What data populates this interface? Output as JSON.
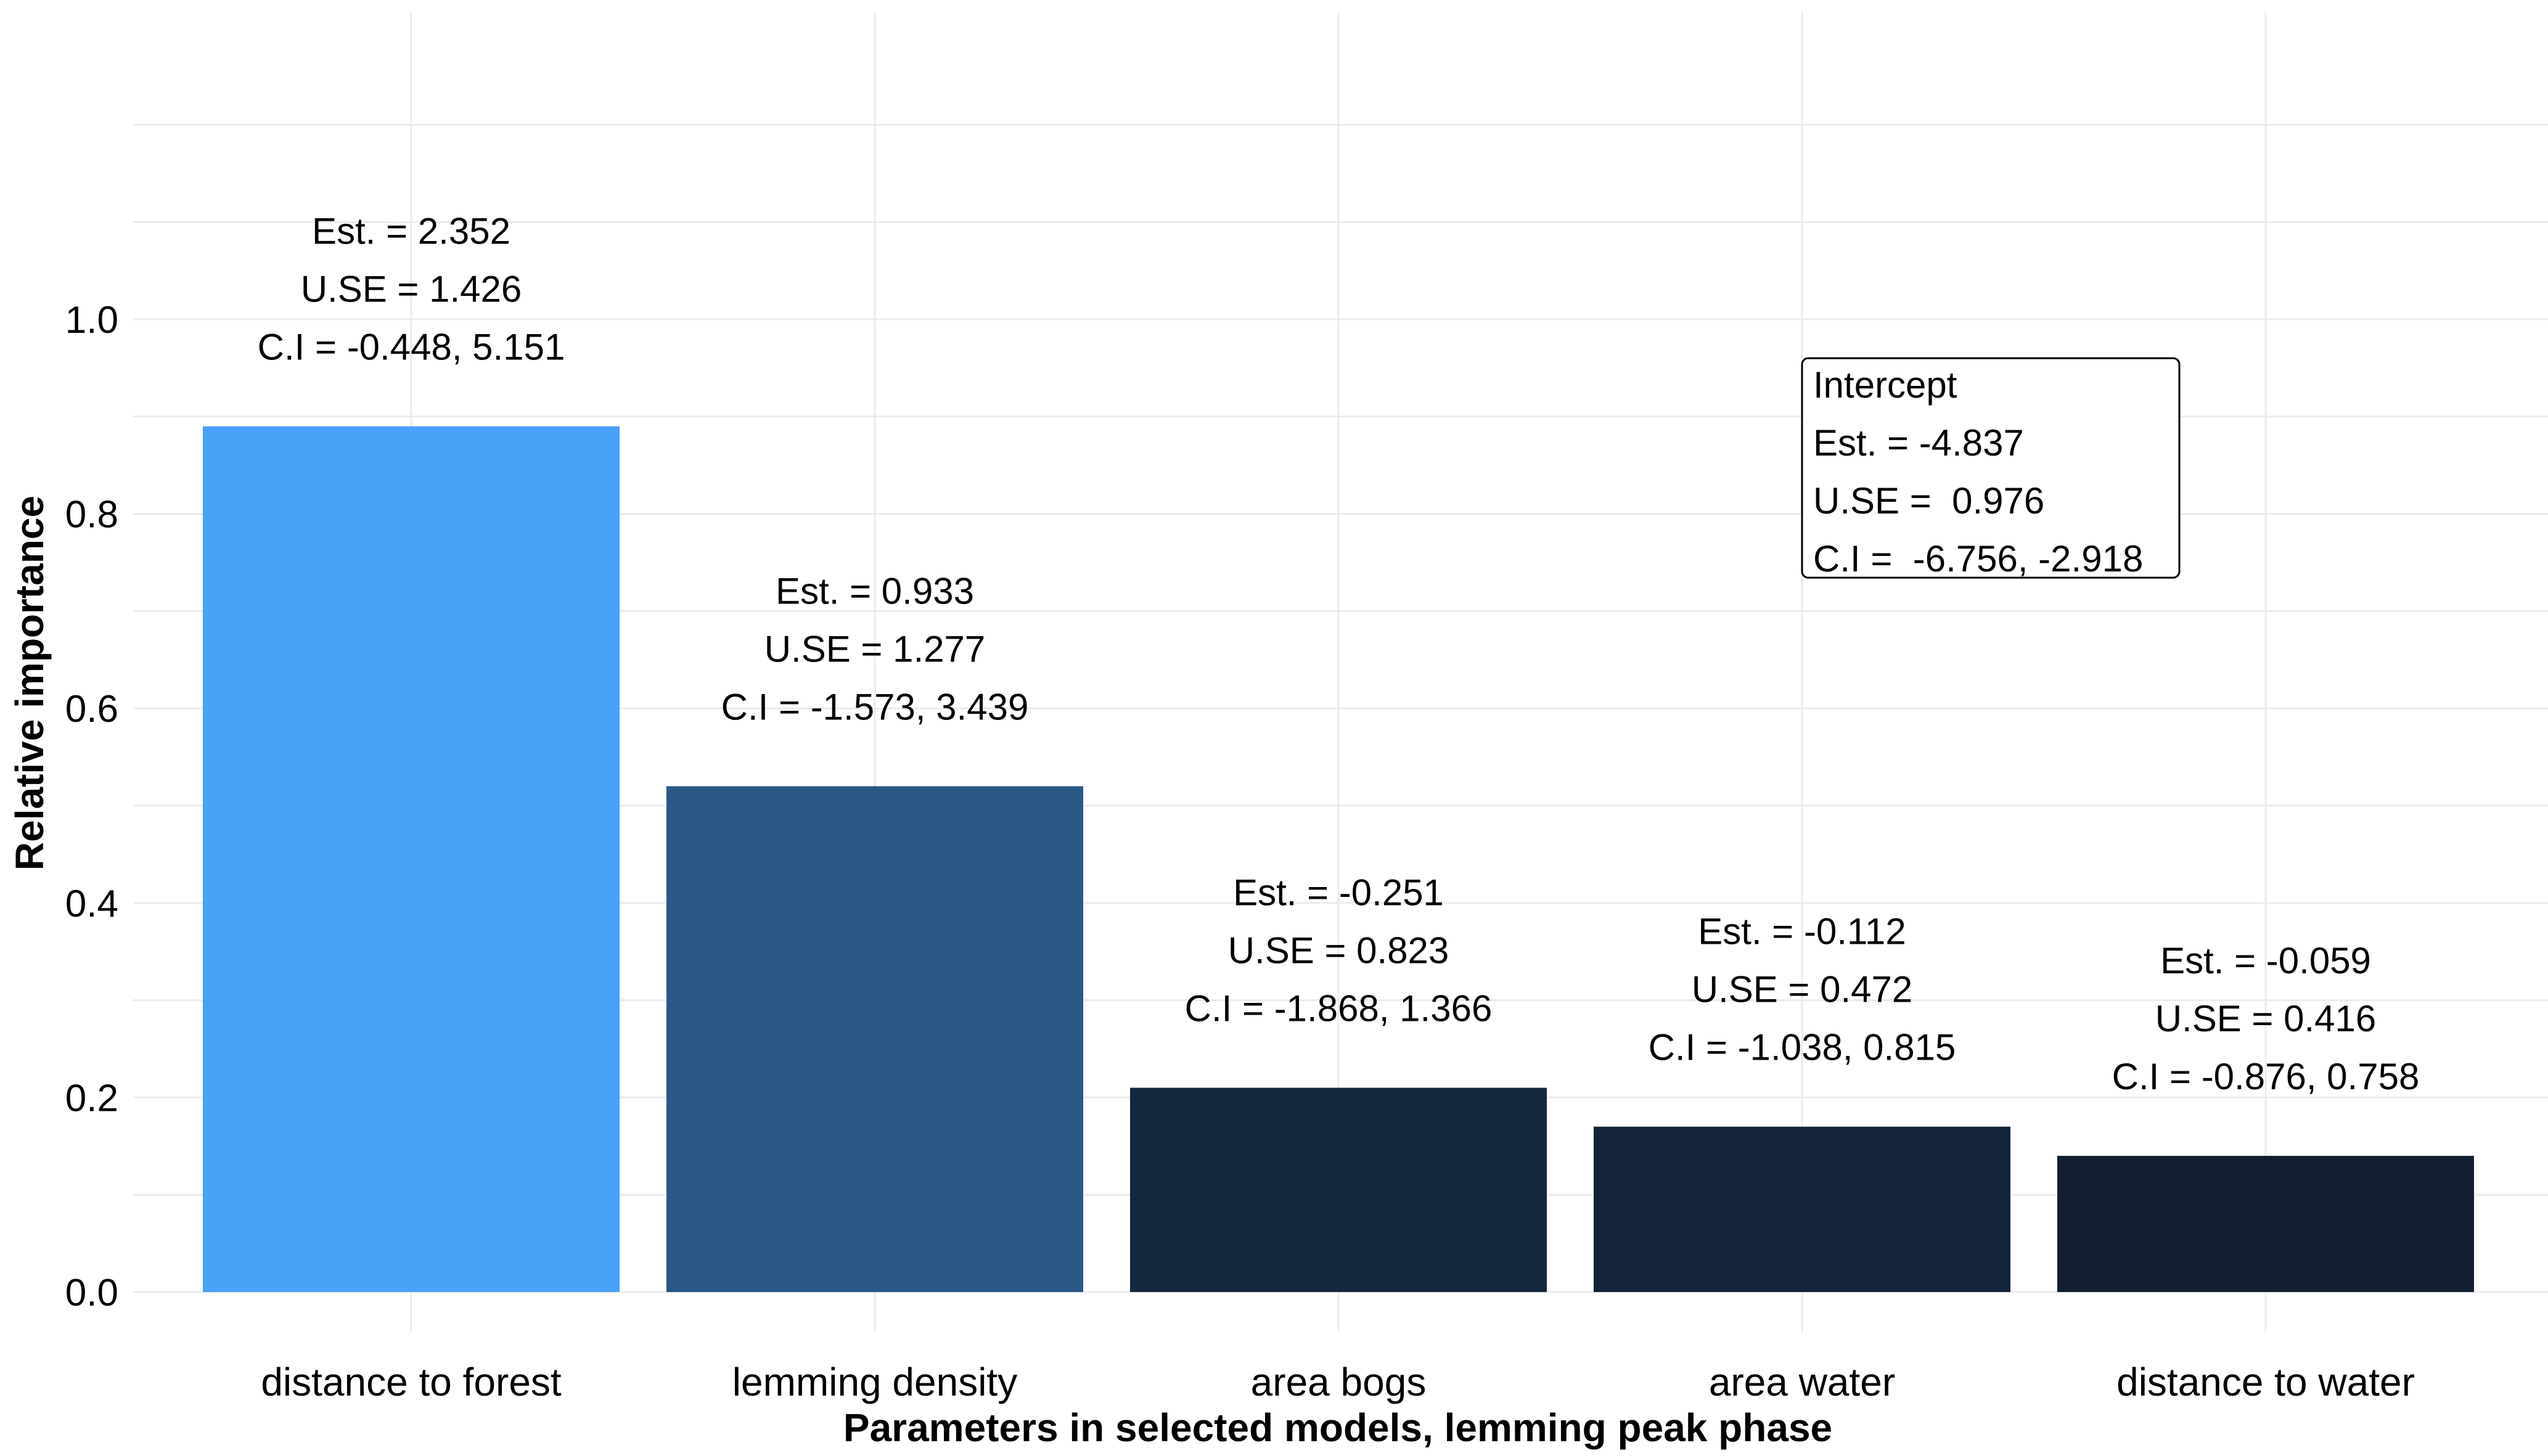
{
  "chart_data": {
    "type": "bar",
    "title": "",
    "xlabel": "Parameters in selected models, lemming peak phase",
    "ylabel": "Relative importance",
    "categories": [
      "distance to forest",
      "lemming density",
      "area bogs",
      "area water",
      "distance to water"
    ],
    "values": [
      0.89,
      0.52,
      0.21,
      0.17,
      0.14
    ],
    "colors": [
      "#48a0f7",
      "#2a5886",
      "#15273f",
      "#132339",
      "#111f31"
    ],
    "ylim": [
      0,
      1.2
    ],
    "yticks": [
      "0.0",
      "0.2",
      "0.4",
      "0.6",
      "0.8",
      "1.0"
    ],
    "grid": true,
    "bar_labels": [
      [
        "Est. = 2.352",
        "U.SE = 1.426",
        "C.I = -0.448, 5.151"
      ],
      [
        "Est. = 0.933",
        "U.SE = 1.277",
        "C.I = -1.573, 3.439"
      ],
      [
        "Est. = -0.251",
        "U.SE = 0.823",
        "C.I = -1.868, 1.366"
      ],
      [
        "Est. = -0.112",
        "U.SE = 0.472",
        "C.I = -1.038, 0.815"
      ],
      [
        "Est. = -0.059",
        "U.SE = 0.416",
        "C.I = -0.876, 0.758"
      ]
    ],
    "annotation": {
      "lines": [
        "Intercept",
        "Est. = -4.837",
        "U.SE =  0.976",
        "C.I =  -6.756, -2.918"
      ],
      "x_category": 3,
      "y_top": 0.96
    }
  }
}
